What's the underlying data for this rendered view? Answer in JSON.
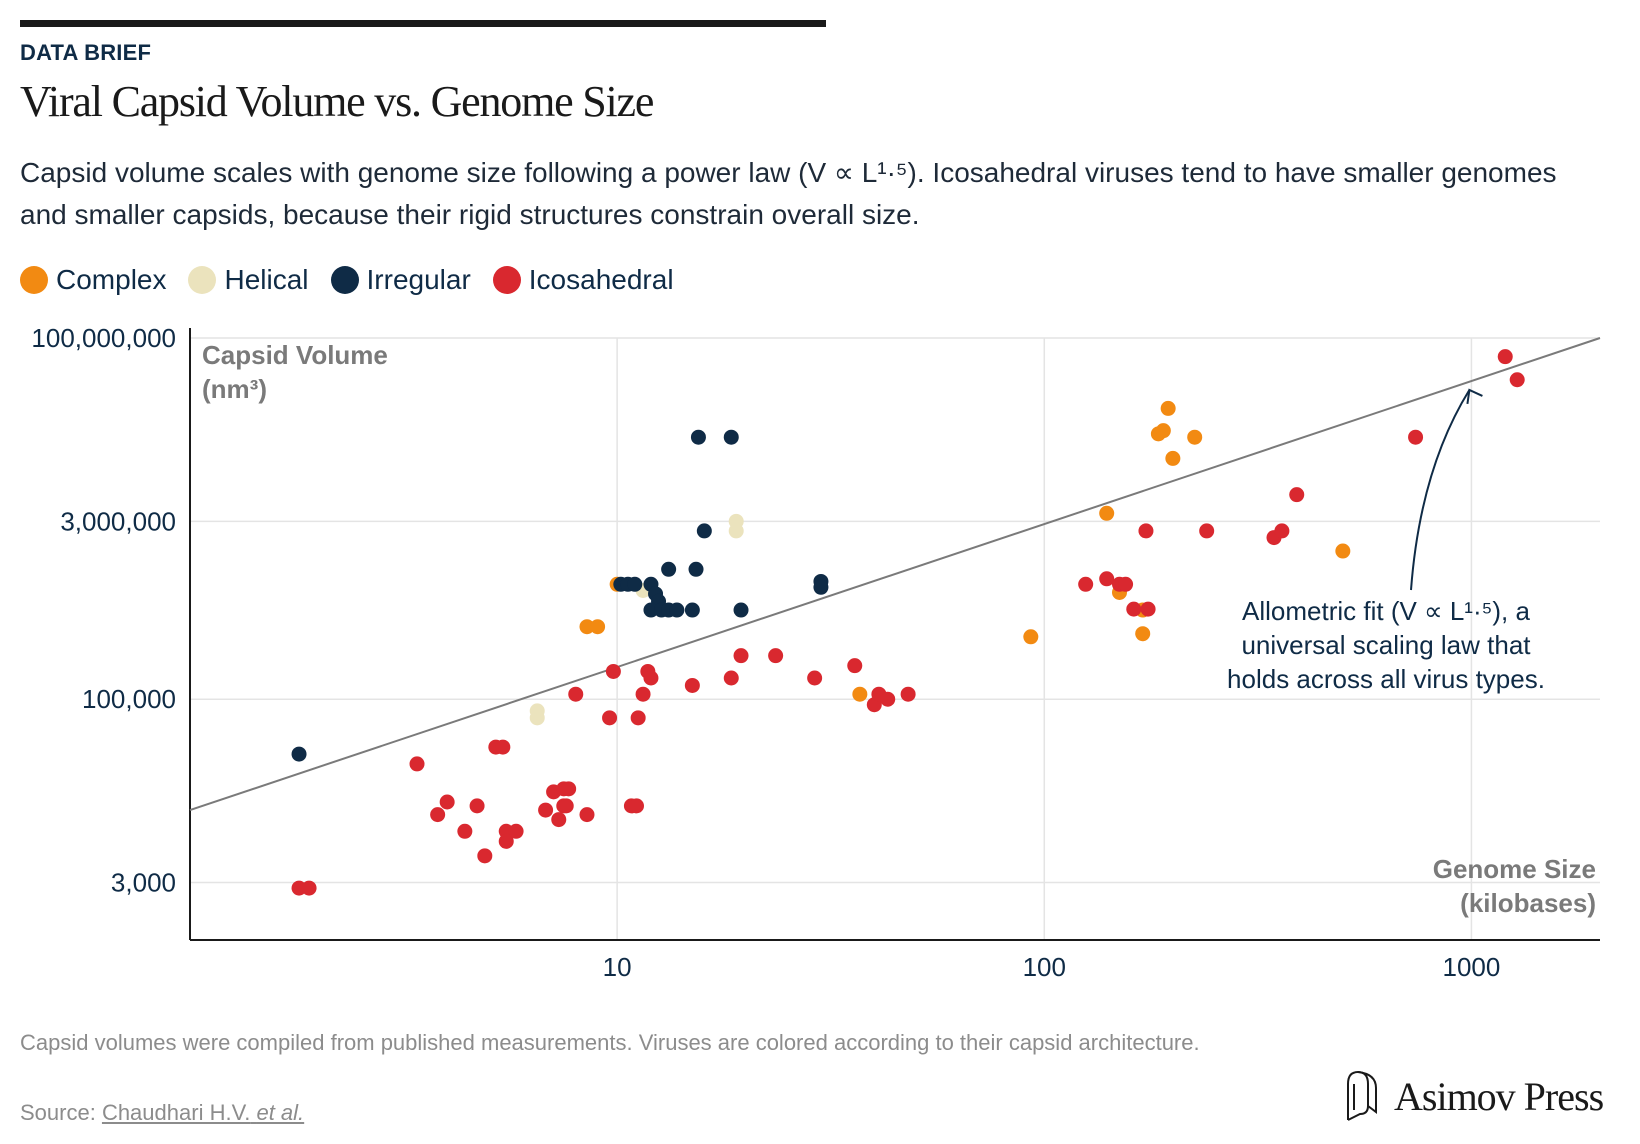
{
  "header": {
    "kicker": "DATA BRIEF",
    "title": "Viral Capsid Volume vs. Genome Size",
    "subtitle": "Capsid volume scales with genome size following a power law (V ∝ L¹·⁵). Icosahedral viruses tend to have smaller genomes and smaller capsids, because their rigid structures constrain overall size."
  },
  "legend": [
    {
      "label": "Complex",
      "color": "#f28a12"
    },
    {
      "label": "Helical",
      "color": "#ebe3bd"
    },
    {
      "label": "Irregular",
      "color": "#0f2b46"
    },
    {
      "label": "Icosahedral",
      "color": "#d9282f"
    }
  ],
  "chart_data": {
    "type": "scatter",
    "xscale": "log",
    "yscale": "log",
    "xlim": [
      1,
      2000
    ],
    "ylim": [
      1000,
      100000000
    ],
    "xlabel_line1": "Genome Size",
    "xlabel_line2": "(kilobases)",
    "ylabel_line1": "Capsid Volume",
    "ylabel_line2": "(nm³)",
    "xticks": [
      {
        "value": 10,
        "label": "10"
      },
      {
        "value": 100,
        "label": "100"
      },
      {
        "value": 1000,
        "label": "1000"
      }
    ],
    "yticks": [
      {
        "value": 3000,
        "label": "3,000"
      },
      {
        "value": 100000,
        "label": "100,000"
      },
      {
        "value": 3000000,
        "label": "3,000,000"
      },
      {
        "value": 100000000,
        "label": "100,000,000"
      }
    ],
    "grid": true,
    "fit": {
      "label": "Allometric fit (V ∝ L¹·⁵)",
      "x_start": 1,
      "y_start": 12000,
      "x_end": 2000,
      "y_end": 100000000
    },
    "annotation": {
      "lines": [
        "Allometric fit (V ∝ L¹·⁵), a",
        "universal scaling law that",
        "holds across all virus types."
      ],
      "arrow_target_x": 1000,
      "arrow_target_y": 40000000
    },
    "series": [
      {
        "name": "Complex",
        "color": "#f28a12",
        "points": [
          [
            10,
            900000
          ],
          [
            8.5,
            400000
          ],
          [
            9,
            400000
          ],
          [
            37,
            110000
          ],
          [
            93,
            330000
          ],
          [
            140,
            3500000
          ],
          [
            150,
            770000
          ],
          [
            170,
            550000
          ],
          [
            170,
            350000
          ],
          [
            185,
            16000000
          ],
          [
            190,
            17000000
          ],
          [
            195,
            26000000
          ],
          [
            200,
            10000000
          ],
          [
            225,
            15000000
          ],
          [
            500,
            1700000
          ]
        ]
      },
      {
        "name": "Helical",
        "color": "#ebe3bd",
        "points": [
          [
            6.5,
            70000
          ],
          [
            6.5,
            80000
          ],
          [
            11.5,
            800000
          ],
          [
            19,
            3000000
          ],
          [
            19,
            2500000
          ]
        ]
      },
      {
        "name": "Irregular",
        "color": "#0f2b46",
        "points": [
          [
            1.8,
            35000
          ],
          [
            10.2,
            900000
          ],
          [
            10.6,
            900000
          ],
          [
            11,
            900000
          ],
          [
            12,
            900000
          ],
          [
            12.3,
            750000
          ],
          [
            12.5,
            650000
          ],
          [
            12,
            550000
          ],
          [
            12.7,
            550000
          ],
          [
            13.2,
            550000
          ],
          [
            13.8,
            550000
          ],
          [
            15,
            550000
          ],
          [
            13.2,
            1200000
          ],
          [
            15.3,
            1200000
          ],
          [
            15.5,
            15000000
          ],
          [
            16,
            2500000
          ],
          [
            18.5,
            15000000
          ],
          [
            19.5,
            550000
          ],
          [
            30,
            950000
          ],
          [
            30,
            850000
          ]
        ]
      },
      {
        "name": "Icosahedral",
        "color": "#d9282f",
        "points": [
          [
            1.8,
            2700
          ],
          [
            1.9,
            2700
          ],
          [
            3.4,
            29000
          ],
          [
            3.8,
            11000
          ],
          [
            4,
            14000
          ],
          [
            4.4,
            8000
          ],
          [
            4.7,
            13000
          ],
          [
            4.9,
            5000
          ],
          [
            5.2,
            40000
          ],
          [
            5.4,
            40000
          ],
          [
            5.5,
            8000
          ],
          [
            5.5,
            6600
          ],
          [
            5.8,
            8000
          ],
          [
            6.8,
            12000
          ],
          [
            7.1,
            17000
          ],
          [
            7.3,
            10000
          ],
          [
            7.5,
            13000
          ],
          [
            7.5,
            18000
          ],
          [
            7.7,
            18000
          ],
          [
            7.6,
            13000
          ],
          [
            8,
            110000
          ],
          [
            8.5,
            11000
          ],
          [
            9.6,
            70000
          ],
          [
            9.8,
            170000
          ],
          [
            10.8,
            13000
          ],
          [
            11.1,
            13000
          ],
          [
            11.2,
            70000
          ],
          [
            11.5,
            110000
          ],
          [
            11.8,
            170000
          ],
          [
            12,
            150000
          ],
          [
            15,
            130000
          ],
          [
            18.5,
            150000
          ],
          [
            19.5,
            230000
          ],
          [
            23.5,
            230000
          ],
          [
            29,
            150000
          ],
          [
            36,
            190000
          ],
          [
            40,
            90000
          ],
          [
            41,
            110000
          ],
          [
            43,
            100000
          ],
          [
            48,
            110000
          ],
          [
            125,
            900000
          ],
          [
            140,
            1000000
          ],
          [
            150,
            900000
          ],
          [
            155,
            900000
          ],
          [
            162,
            560000
          ],
          [
            173,
            2500000
          ],
          [
            175,
            560000
          ],
          [
            240,
            2500000
          ],
          [
            345,
            2200000
          ],
          [
            360,
            2500000
          ],
          [
            390,
            5000000
          ],
          [
            740,
            15000000
          ],
          [
            1200,
            70000000
          ],
          [
            1280,
            45000000
          ]
        ]
      }
    ]
  },
  "footer": {
    "footnote": "Capsid volumes were compiled from published measurements. Viruses are colored according to their capsid architecture.",
    "source_prefix": "Source: ",
    "source_link": "Chaudhari H.V.",
    "source_em": "et al.",
    "logo": "Asimov Press"
  }
}
